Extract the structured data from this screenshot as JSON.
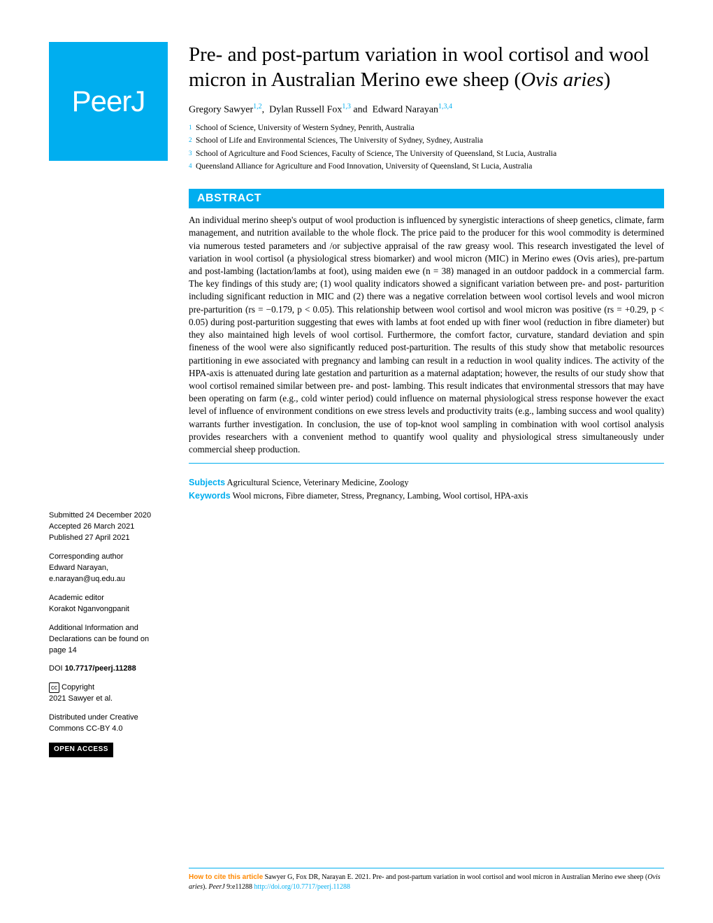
{
  "logo": "PeerJ",
  "title_pre": "Pre- and post-partum variation in wool cortisol and wool micron in Australian Merino ewe sheep (",
  "title_italic": "Ovis aries",
  "title_post": ")",
  "authors": {
    "a1_name": "Gregory Sawyer",
    "a1_sup": "1,2",
    "a2_name": "Dylan Russell Fox",
    "a2_sup": "1,3",
    "a3_name": "Edward Narayan",
    "a3_sup": "1,3,4"
  },
  "affiliations": {
    "n1": "1",
    "t1": "School of Science, University of Western Sydney, Penrith, Australia",
    "n2": "2",
    "t2": "School of Life and Environmental Sciences, The University of Sydney, Sydney, Australia",
    "n3": "3",
    "t3": "School of Agriculture and Food Sciences, Faculty of Science, The University of Queensland, St Lucia, Australia",
    "n4": "4",
    "t4": "Queensland Alliance for Agriculture and Food Innovation, University of Queensland, St Lucia, Australia"
  },
  "abstract_label": "ABSTRACT",
  "abstract_text": "An individual merino sheep's output of wool production is influenced by synergistic interactions of sheep genetics, climate, farm management, and nutrition available to the whole flock. The price paid to the producer for this wool commodity is determined via numerous tested parameters and /or subjective appraisal of the raw greasy wool. This research investigated the level of variation in wool cortisol (a physiological stress biomarker) and wool micron (MIC) in Merino ewes (Ovis aries), pre-partum and post-lambing (lactation/lambs at foot), using maiden ewe (n = 38) managed in an outdoor paddock in a commercial farm. The key findings of this study are; (1) wool quality indicators showed a significant variation between pre- and post- parturition including significant reduction in MIC and (2) there was a negative correlation between wool cortisol levels and wool micron pre-parturition (rs = −0.179, p < 0.05). This relationship between wool cortisol and wool micron was positive (rs = +0.29, p < 0.05) during post-parturition suggesting that ewes with lambs at foot ended up with finer wool (reduction in fibre diameter) but they also maintained high levels of wool cortisol. Furthermore, the comfort factor, curvature, standard deviation and spin fineness of the wool were also significantly reduced post-parturition. The results of this study show that metabolic resources partitioning in ewe associated with pregnancy and lambing can result in a reduction in wool quality indices. The activity of the HPA-axis is attenuated during late gestation and parturition as a maternal adaptation; however, the results of our study show that wool cortisol remained similar between pre- and post- lambing. This result indicates that environmental stressors that may have been operating on farm (e.g., cold winter period) could influence on maternal physiological stress response however the exact level of influence of environment conditions on ewe stress levels and productivity traits (e.g., lambing success and wool quality) warrants further investigation. In conclusion, the use of top-knot wool sampling in combination with wool cortisol analysis provides researchers with a convenient method to quantify wool quality and physiological stress simultaneously under commercial sheep production.",
  "subjects_label": "Subjects",
  "subjects_text": "Agricultural Science, Veterinary Medicine, Zoology",
  "keywords_label": "Keywords",
  "keywords_text": "Wool microns, Fibre diameter, Stress, Pregnancy, Lambing, Wool cortisol, HPA-axis",
  "sidebar": {
    "submitted_label": "Submitted",
    "submitted_date": "24 December 2020",
    "accepted_label": "Accepted",
    "accepted_date": "26 March 2021",
    "published_label": "Published",
    "published_date": "27 April 2021",
    "corr_label": "Corresponding author",
    "corr_name": "Edward Narayan,",
    "corr_email": "e.narayan@uq.edu.au",
    "editor_label": "Academic editor",
    "editor_name": "Korakot Nganvongpanit",
    "addl_info": "Additional Information and Declarations can be found on page 14",
    "doi_label": "DOI",
    "doi_value": "10.7717/peerj.11288",
    "cc_symbol": "cc",
    "copyright_label": "Copyright",
    "copyright_text": "2021 Sawyer et al.",
    "distributed": "Distributed under Creative Commons CC-BY 4.0",
    "open_access": "OPEN ACCESS"
  },
  "citation": {
    "label": "How to cite this article",
    "text1": "Sawyer G, Fox DR, Narayan E. 2021. Pre- and post-partum variation in wool cortisol and wool micron in Australian Merino ewe sheep (",
    "italic1": "Ovis aries",
    "text2": "). ",
    "italic2": "PeerJ",
    "text3": " 9:e11288 ",
    "link": "http://doi.org/10.7717/peerj.11288"
  },
  "colors": {
    "brand": "#00aeef",
    "orange": "#ff8800"
  }
}
